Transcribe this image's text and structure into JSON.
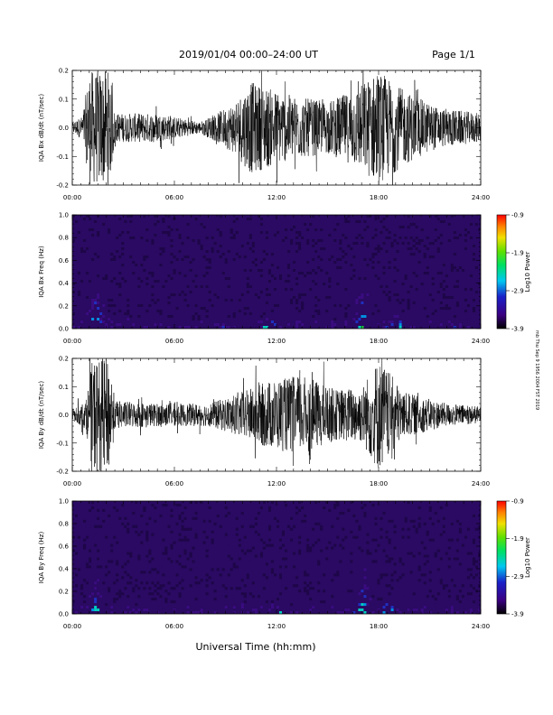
{
  "header": {
    "title": "2019/01/04  00:00–24:00 UT",
    "page": "Page 1/1"
  },
  "side_stamp": "mb Thu Sep 9 1956 2004 FST 2019",
  "xlabel": "Universal Time (hh:mm)",
  "time_ticks": [
    "00:00",
    "06:00",
    "12:00",
    "18:00",
    "24:00"
  ],
  "colors": {
    "background": "#ffffff",
    "trace": "#000000",
    "spectrogram_background": "#2a0a62",
    "colorbar": [
      "#000000",
      "#3a0080",
      "#1a20c8",
      "#00c8f0",
      "#00e060",
      "#60e000",
      "#f0e000",
      "#ff8000",
      "#ff0000"
    ]
  },
  "chart_data": [
    {
      "type": "line",
      "id": "bx",
      "ylabel": "IQA Bx dB/dt (nT/sec)",
      "xlim": [
        0,
        24
      ],
      "ylim": [
        -0.2,
        0.2
      ],
      "yticks": [
        "-0.2",
        "-0.1",
        "0.0",
        "0.1",
        "0.2"
      ],
      "amplitude_envelope": [
        {
          "t": 0.0,
          "a": 0.02
        },
        {
          "t": 0.6,
          "a": 0.04
        },
        {
          "t": 1.0,
          "a": 0.2
        },
        {
          "t": 2.2,
          "a": 0.2
        },
        {
          "t": 2.5,
          "a": 0.05
        },
        {
          "t": 5.0,
          "a": 0.05
        },
        {
          "t": 7.5,
          "a": 0.02
        },
        {
          "t": 8.5,
          "a": 0.05
        },
        {
          "t": 9.5,
          "a": 0.09
        },
        {
          "t": 10.5,
          "a": 0.16
        },
        {
          "t": 13.0,
          "a": 0.11
        },
        {
          "t": 15.0,
          "a": 0.09
        },
        {
          "t": 16.5,
          "a": 0.13
        },
        {
          "t": 18.0,
          "a": 0.2
        },
        {
          "t": 19.5,
          "a": 0.13
        },
        {
          "t": 21.5,
          "a": 0.07
        },
        {
          "t": 24.0,
          "a": 0.05
        }
      ]
    },
    {
      "type": "heatmap",
      "id": "bx_spec",
      "ylabel": "IQA Bx Freq (Hz)",
      "xlim": [
        0,
        24
      ],
      "ylim": [
        0,
        1.0
      ],
      "yticks": [
        "0.0",
        "0.2",
        "0.4",
        "0.6",
        "0.8",
        "1.0"
      ],
      "colorbar_label": "Log10 Power",
      "colorbar_ticks": [
        "-0.9",
        "-1.9",
        "-2.9",
        "-3.9"
      ],
      "clim": [
        -3.9,
        -0.9
      ],
      "features": [
        {
          "t": 1.3,
          "f_max": 0.45,
          "level": -2.2
        },
        {
          "t": 11.5,
          "f_max": 0.1,
          "level": -2.7
        },
        {
          "t": 17.0,
          "f_max": 0.42,
          "level": -2.6
        },
        {
          "t": 19.0,
          "f_max": 0.15,
          "level": -2.8
        }
      ]
    },
    {
      "type": "line",
      "id": "by",
      "ylabel": "IQA By dB/dt (nT/sec)",
      "xlim": [
        0,
        24
      ],
      "ylim": [
        -0.2,
        0.2
      ],
      "yticks": [
        "-0.2",
        "-0.1",
        "0.0",
        "0.1",
        "0.2"
      ],
      "amplitude_envelope": [
        {
          "t": 0.0,
          "a": 0.02
        },
        {
          "t": 0.8,
          "a": 0.05
        },
        {
          "t": 1.2,
          "a": 0.2
        },
        {
          "t": 2.2,
          "a": 0.2
        },
        {
          "t": 2.5,
          "a": 0.05
        },
        {
          "t": 5.0,
          "a": 0.04
        },
        {
          "t": 8.0,
          "a": 0.04
        },
        {
          "t": 9.5,
          "a": 0.07
        },
        {
          "t": 11.5,
          "a": 0.12
        },
        {
          "t": 13.5,
          "a": 0.14
        },
        {
          "t": 15.5,
          "a": 0.09
        },
        {
          "t": 17.0,
          "a": 0.1
        },
        {
          "t": 18.0,
          "a": 0.2
        },
        {
          "t": 19.5,
          "a": 0.08
        },
        {
          "t": 22.0,
          "a": 0.04
        },
        {
          "t": 24.0,
          "a": 0.03
        }
      ]
    },
    {
      "type": "heatmap",
      "id": "by_spec",
      "ylabel": "IQA By Freq (Hz)",
      "xlim": [
        0,
        24
      ],
      "ylim": [
        0,
        1.0
      ],
      "yticks": [
        "0.0",
        "0.2",
        "0.4",
        "0.6",
        "0.8",
        "1.0"
      ],
      "colorbar_label": "Log10 Power",
      "colorbar_ticks": [
        "-0.9",
        "-1.9",
        "-2.9",
        "-3.9"
      ],
      "clim": [
        -3.9,
        -0.9
      ],
      "features": [
        {
          "t": 1.3,
          "f_max": 0.35,
          "level": -2.2
        },
        {
          "t": 12.0,
          "f_max": 0.08,
          "level": -2.7
        },
        {
          "t": 17.0,
          "f_max": 0.45,
          "level": -2.6
        },
        {
          "t": 18.5,
          "f_max": 0.15,
          "level": -2.8
        }
      ]
    }
  ]
}
